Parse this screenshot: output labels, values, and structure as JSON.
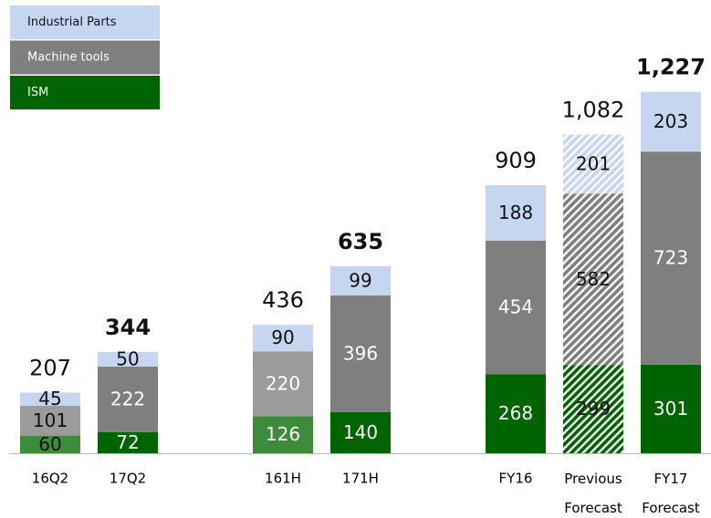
{
  "chart_data": {
    "type": "stacked_bar",
    "categories": [
      "16Q2",
      "17Q2",
      null,
      "161H",
      "171H",
      null,
      "FY16",
      "Previous Forecast",
      "FY17 Forecast"
    ],
    "series": [
      {
        "name": "ISM",
        "color": "#006400",
        "light_color": "#3c8c3c",
        "values": [
          60,
          72,
          null,
          126,
          140,
          null,
          268,
          299,
          301
        ]
      },
      {
        "name": "Machine tools",
        "color": "#7f7f7f",
        "light_color": "#9b9b9b",
        "values": [
          101,
          222,
          null,
          220,
          396,
          null,
          454,
          582,
          723
        ]
      },
      {
        "name": "Industrial Parts",
        "color": "#c6d6f0",
        "light_color": "#c6d6f0",
        "values": [
          45,
          50,
          null,
          90,
          99,
          null,
          188,
          201,
          203
        ]
      }
    ],
    "bar_style": [
      "plain",
      "solid",
      null,
      "light",
      "solid",
      null,
      "solid",
      "hatched",
      "solid"
    ],
    "totals": [
      207,
      344,
      null,
      436,
      635,
      null,
      909,
      1082,
      1227
    ],
    "total_labels": [
      "207",
      "344",
      null,
      "436",
      "635",
      null,
      "909",
      "1,082",
      "1,227"
    ],
    "total_bold": [
      false,
      true,
      null,
      false,
      true,
      null,
      false,
      false,
      true
    ],
    "legend": "top-left"
  }
}
